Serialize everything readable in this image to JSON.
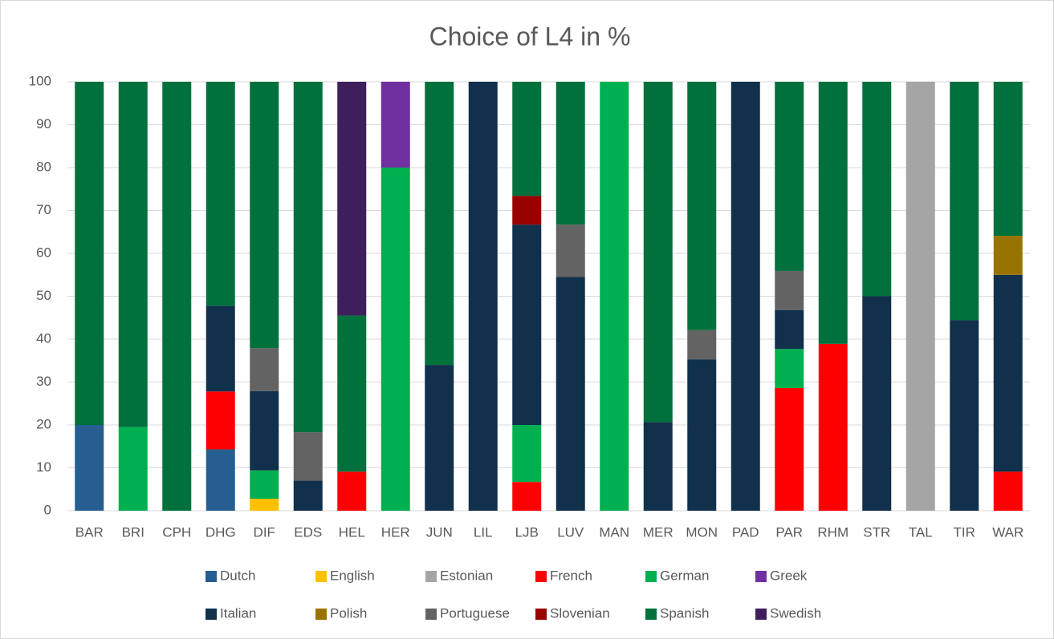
{
  "chart_data": {
    "type": "stacked_bar",
    "title": "Choice of L4 in %",
    "categories": [
      "BAR",
      "BRI",
      "CPH",
      "DHG",
      "DIF",
      "EDS",
      "HEL",
      "HER",
      "JUN",
      "LIL",
      "LJB",
      "LUV",
      "MAN",
      "MER",
      "MON",
      "PAD",
      "PAR",
      "RHM",
      "STR",
      "TAL",
      "TIR",
      "WAR"
    ],
    "ylim": [
      0,
      100
    ],
    "yticks": [
      0,
      10,
      20,
      30,
      40,
      50,
      60,
      70,
      80,
      90,
      100
    ],
    "grid": true,
    "series": [
      {
        "name": "Dutch",
        "color": "#255e91",
        "values": [
          20,
          0,
          0,
          14.3,
          0,
          0,
          0,
          0,
          0,
          0,
          0,
          0,
          0,
          0,
          0,
          0,
          0,
          0,
          0,
          0,
          0,
          0
        ]
      },
      {
        "name": "English",
        "color": "#ffc000",
        "values": [
          0,
          0,
          0,
          0,
          2.8,
          0,
          0,
          0,
          0,
          0,
          0,
          0,
          0,
          0,
          0,
          0,
          0,
          0,
          0,
          0,
          0,
          0
        ]
      },
      {
        "name": "Estonian",
        "color": "#a5a5a5",
        "values": [
          0,
          0,
          0,
          0,
          0,
          0,
          0,
          0,
          0,
          0,
          0,
          0,
          0,
          0,
          0,
          0,
          0,
          0,
          0,
          100,
          0,
          0
        ]
      },
      {
        "name": "French",
        "color": "#ff0000",
        "values": [
          0,
          0,
          0,
          13.5,
          0,
          0,
          9.1,
          0,
          0,
          0,
          6.7,
          0,
          0,
          0,
          0,
          0,
          28.6,
          38.9,
          0,
          0,
          0,
          9.1
        ]
      },
      {
        "name": "German",
        "color": "#00b050",
        "values": [
          0,
          19.5,
          0,
          0,
          6.6,
          0,
          0,
          80,
          0,
          0,
          13.3,
          0,
          100,
          0,
          0,
          0,
          9.1,
          0,
          0,
          0,
          0,
          0
        ]
      },
      {
        "name": "Greek",
        "color": "#7030a0",
        "values": [
          0,
          0,
          0,
          0,
          0,
          0,
          0,
          20,
          0,
          0,
          0,
          0,
          0,
          0,
          0,
          0,
          0,
          0,
          0,
          0,
          0,
          0
        ]
      },
      {
        "name": "Italian",
        "color": "#10304b",
        "values": [
          0,
          0,
          0,
          20,
          18.5,
          7,
          0,
          0,
          34,
          100,
          46.7,
          54.5,
          0,
          20.7,
          35.3,
          100,
          9.1,
          0,
          50,
          0,
          44.4,
          45.9
        ]
      },
      {
        "name": "Polish",
        "color": "#997300",
        "values": [
          0,
          0,
          0,
          0,
          0,
          0,
          0,
          0,
          0,
          0,
          0,
          0,
          0,
          0,
          0,
          0,
          0,
          0,
          0,
          0,
          0,
          9.1
        ]
      },
      {
        "name": "Portuguese",
        "color": "#636363",
        "values": [
          0,
          0,
          0,
          0,
          10,
          11.3,
          0,
          0,
          0,
          0,
          0,
          12.2,
          0,
          0,
          6.8,
          0,
          9.1,
          0,
          0,
          0,
          0,
          0
        ]
      },
      {
        "name": "Slovenian",
        "color": "#990000",
        "values": [
          0,
          0,
          0,
          0,
          0,
          0,
          0,
          0,
          0,
          0,
          6.7,
          0,
          0,
          0,
          0,
          0,
          0,
          0,
          0,
          0,
          0,
          0
        ]
      },
      {
        "name": "Spanish",
        "color": "#00703c",
        "values": [
          80,
          80.5,
          100,
          52.2,
          62.1,
          81.7,
          36.4,
          0,
          66,
          0,
          26.6,
          33.3,
          0,
          79.3,
          57.9,
          0,
          44.1,
          61.1,
          50,
          0,
          55.6,
          35.9
        ]
      },
      {
        "name": "Swedish",
        "color": "#3e1f5c",
        "values": [
          0,
          0,
          0,
          0,
          0,
          0,
          54.5,
          0,
          0,
          0,
          0,
          0,
          0,
          0,
          0,
          0,
          0,
          0,
          0,
          0,
          0,
          0
        ]
      }
    ]
  }
}
